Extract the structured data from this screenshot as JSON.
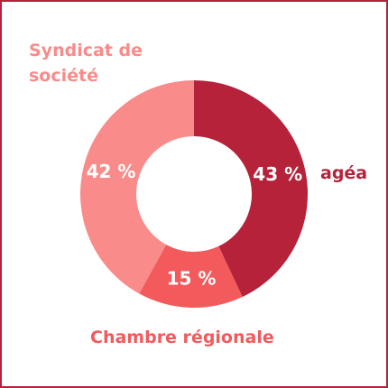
{
  "chart_data": {
    "type": "donut",
    "categories": [
      "agéa",
      "Chambre régionale",
      "Syndicat de société"
    ],
    "values": [
      43,
      15,
      42
    ],
    "value_labels": [
      "43 %",
      "15 %",
      "42 %"
    ],
    "colors": [
      "#b5223a",
      "#f25a5c",
      "#f98b8a"
    ]
  }
}
